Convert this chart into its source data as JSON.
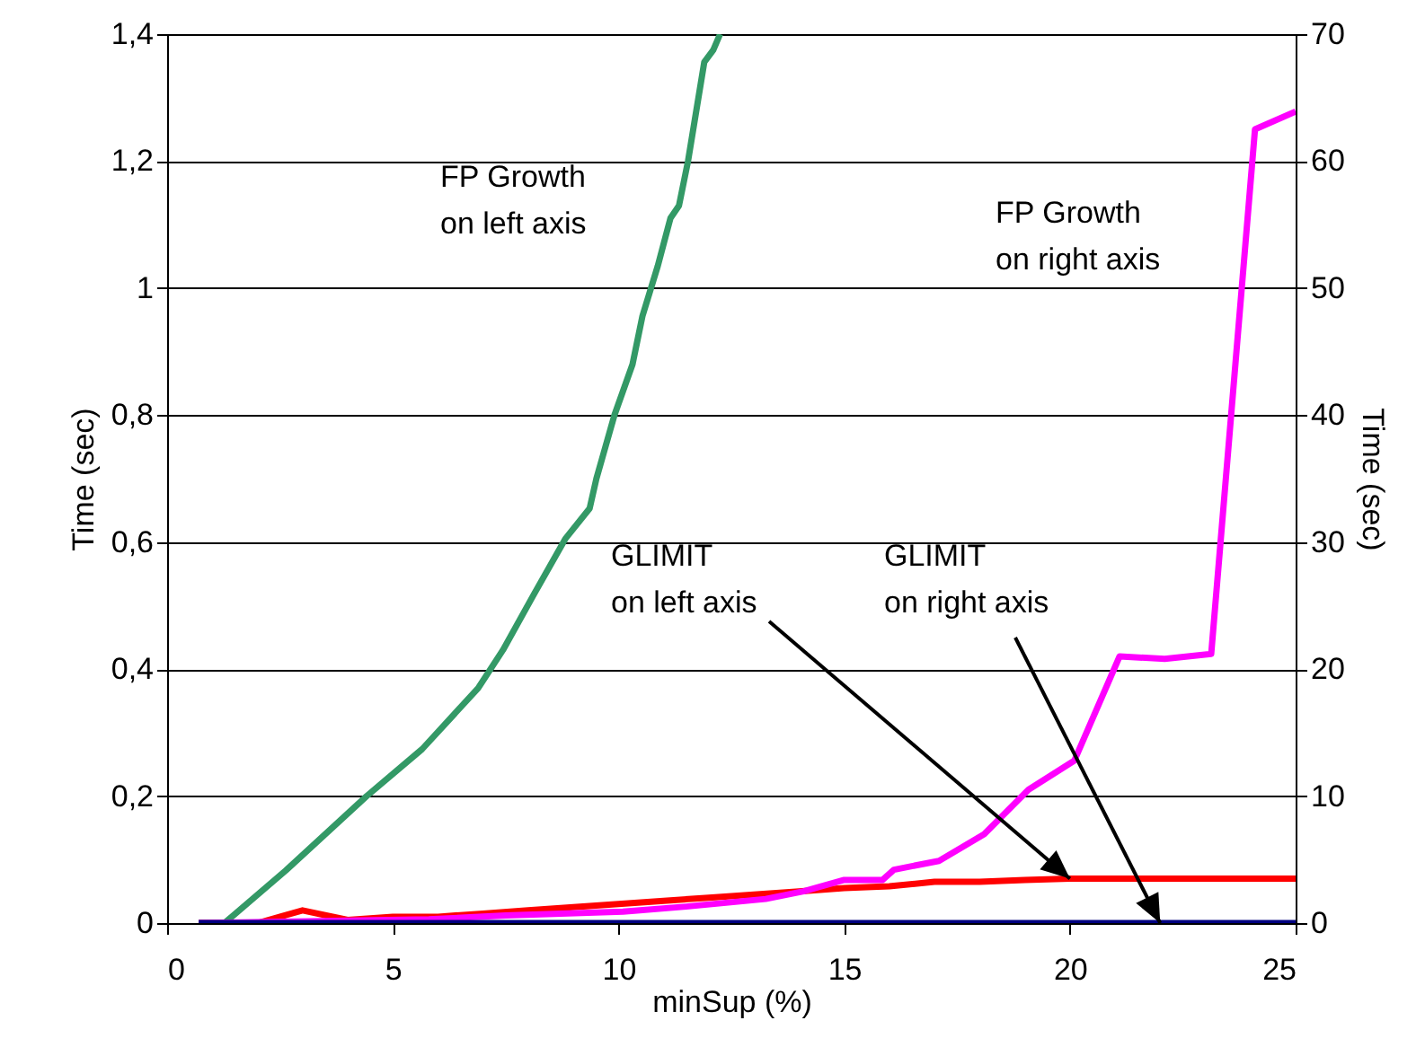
{
  "chart_data": {
    "type": "line",
    "xlabel": "minSup (%)",
    "ylabel": "Time (sec)",
    "y2label": "Time (sec)",
    "xlim": [
      0,
      25
    ],
    "xticks": [
      0,
      5,
      10,
      15,
      20,
      25
    ],
    "ylim": [
      0,
      1.4
    ],
    "yticks": [
      0,
      {
        "value": 0.2,
        "label": "0,2"
      },
      {
        "value": 0.4,
        "label": "0,4"
      },
      {
        "value": 0.6,
        "label": "0,6"
      },
      {
        "value": 0.8,
        "label": "0,8"
      },
      1,
      {
        "value": 1.2,
        "label": "1,2"
      },
      {
        "value": 1.4,
        "label": "1,4"
      }
    ],
    "y2lim": [
      0,
      70
    ],
    "y2ticks": [
      0,
      10,
      20,
      30,
      40,
      50,
      60,
      70
    ],
    "grid": "y",
    "marker": "none",
    "line_style": "solid",
    "series": [
      {
        "color": "#339966",
        "x": [
          0.7,
          1.27,
          2.63,
          4.42,
          5.65,
          6.89,
          7.44,
          8.12,
          8.82,
          9.36,
          9.51,
          9.91,
          10.31,
          10.53,
          10.87,
          11.15,
          11.34,
          11.54,
          11.9,
          12.1,
          12.25
        ],
        "values": [
          0,
          0,
          0.083,
          0.2,
          0.274,
          0.37,
          0.43,
          0.517,
          0.605,
          0.653,
          0.7,
          0.8,
          0.88,
          0.956,
          1.035,
          1.11,
          1.13,
          1.2,
          1.356,
          1.375,
          1.4
        ]
      },
      {
        "color": "#ff0000",
        "x": [
          0.7,
          2,
          3,
          4,
          5,
          6,
          7,
          8,
          9,
          10,
          11,
          12,
          13,
          14,
          15,
          16,
          17,
          18,
          19,
          20,
          21,
          22,
          23,
          24,
          25
        ],
        "values": [
          0,
          0,
          0.02,
          0.005,
          0.01,
          0.01,
          0.015,
          0.02,
          0.025,
          0.03,
          0.035,
          0.04,
          0.045,
          0.05,
          0.055,
          0.058,
          0.065,
          0.065,
          0.068,
          0.07,
          0.07,
          0.07,
          0.07,
          0.07,
          0.07
        ]
      },
      {
        "color": "#ff00ff",
        "axis": "y2",
        "x": [
          0.7,
          5.8,
          7.5,
          10.1,
          11.5,
          13.26,
          14.1,
          15.0,
          15.85,
          16.1,
          17.1,
          18.1,
          19.08,
          20.1,
          21.1,
          22.1,
          23.13,
          24.1,
          25
        ],
        "values": [
          0,
          0.3,
          0.6,
          0.9,
          1.3,
          1.9,
          2.5,
          3.4,
          3.4,
          4.2,
          4.9,
          7.0,
          10.5,
          12.8,
          21.0,
          20.8,
          21.2,
          62.5,
          63.9
        ]
      },
      {
        "color": "#000080",
        "axis": "y2",
        "x": [
          0.7,
          5,
          10,
          15,
          20,
          25
        ],
        "values": [
          0,
          0,
          0,
          0,
          0,
          0
        ]
      }
    ],
    "annotations": [
      "FP Growth\non left axis",
      "FP Growth\non right axis",
      {
        "text": "GLIMIT\non left axis",
        "x": 20,
        "y": 0.07
      },
      {
        "text": "GLIMIT\non right axis",
        "x": 22,
        "y": 0
      }
    ]
  }
}
